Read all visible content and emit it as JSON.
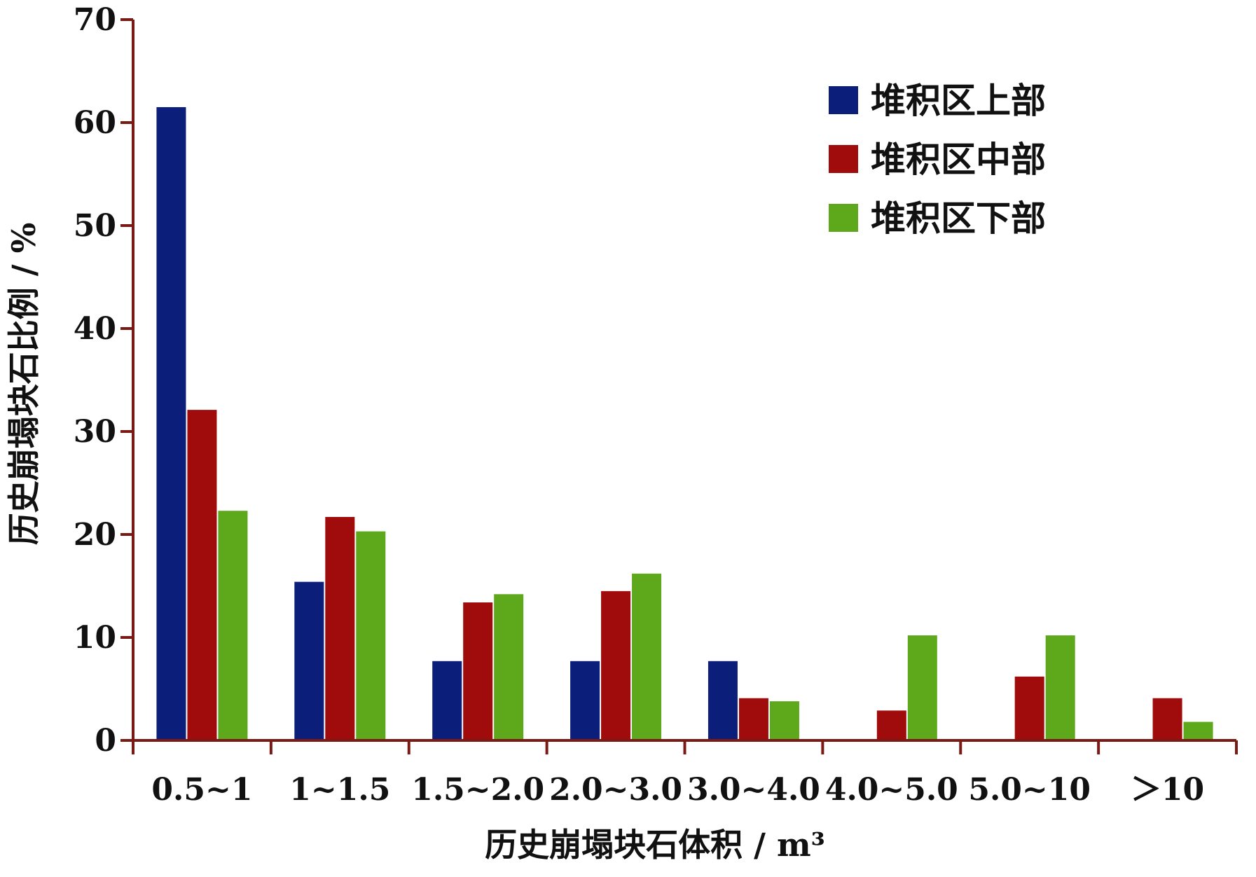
{
  "chart_data": {
    "type": "bar",
    "xlabel": "历史崩塌块石体积 / m³",
    "ylabel": "历史崩塌块石比例 / %",
    "ylim": [
      0,
      70
    ],
    "yticks": [
      0,
      10,
      20,
      30,
      40,
      50,
      60,
      70
    ],
    "grid": false,
    "legend_position": "top-right",
    "categories": [
      "0.5~1",
      "1~1.5",
      "1.5~2.0",
      "2.0~3.0",
      "3.0~4.0",
      "4.0~5.0",
      "5.0~10",
      "＞10"
    ],
    "series": [
      {
        "name": "堆积区上部",
        "color": "#0b1f7a",
        "values": [
          61.5,
          15.4,
          7.7,
          7.7,
          7.7,
          0,
          0,
          0
        ]
      },
      {
        "name": "堆积区中部",
        "color": "#a00b0b",
        "values": [
          32.1,
          21.7,
          13.4,
          14.5,
          4.1,
          2.9,
          6.2,
          4.1
        ]
      },
      {
        "name": "堆积区下部",
        "color": "#5ea81c",
        "values": [
          22.3,
          20.3,
          14.2,
          16.2,
          3.8,
          10.2,
          10.2,
          1.8
        ]
      }
    ]
  }
}
